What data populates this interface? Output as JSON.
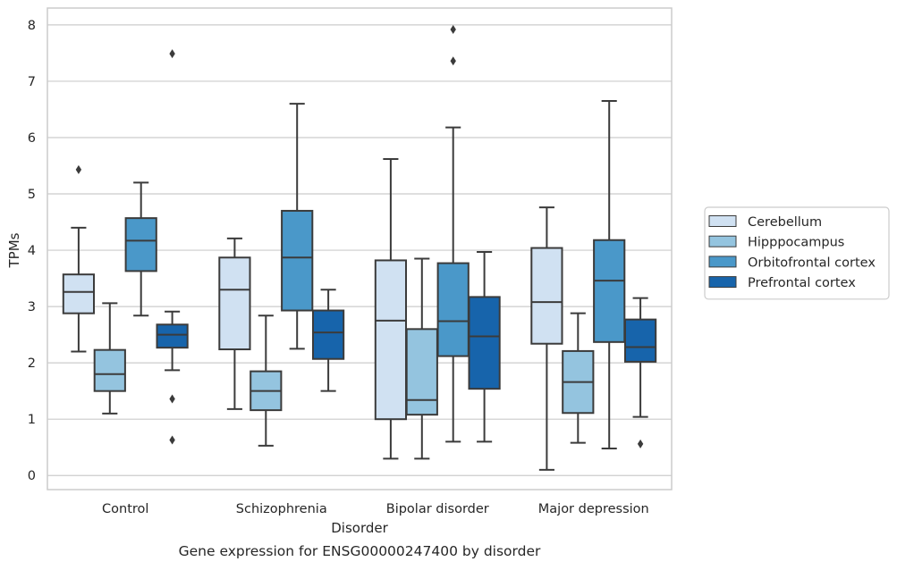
{
  "chart_data": {
    "type": "boxplot",
    "caption": "Gene expression for ENSG00000247400 by disorder",
    "xlabel": "Disorder",
    "ylabel": "TPMs",
    "ylim": [
      -0.25,
      8.3
    ],
    "yticks": [
      0,
      1,
      2,
      3,
      4,
      5,
      6,
      7,
      8
    ],
    "grid": true,
    "legend_position": "right",
    "categories": [
      "Control",
      "Schizophrenia",
      "Bipolar disorder",
      "Major depression"
    ],
    "series": [
      {
        "name": "Cerebellum",
        "color": "#d0e1f2",
        "boxes": [
          {
            "whislo": 2.2,
            "q1": 2.88,
            "med": 3.26,
            "q3": 3.57,
            "whishi": 4.4,
            "fliers": [
              5.43
            ]
          },
          {
            "whislo": 1.18,
            "q1": 2.24,
            "med": 3.3,
            "q3": 3.87,
            "whishi": 4.21,
            "fliers": []
          },
          {
            "whislo": 0.3,
            "q1": 1.0,
            "med": 2.75,
            "q3": 3.82,
            "whishi": 5.62,
            "fliers": []
          },
          {
            "whislo": 0.1,
            "q1": 2.34,
            "med": 3.08,
            "q3": 4.04,
            "whishi": 4.76,
            "fliers": []
          }
        ]
      },
      {
        "name": "Hipppocampus",
        "color": "#94c4df",
        "boxes": [
          {
            "whislo": 1.1,
            "q1": 1.5,
            "med": 1.8,
            "q3": 2.23,
            "whishi": 3.06,
            "fliers": []
          },
          {
            "whislo": 0.53,
            "q1": 1.16,
            "med": 1.5,
            "q3": 1.85,
            "whishi": 2.84,
            "fliers": []
          },
          {
            "whislo": 0.3,
            "q1": 1.08,
            "med": 1.34,
            "q3": 2.6,
            "whishi": 3.85,
            "fliers": []
          },
          {
            "whislo": 0.58,
            "q1": 1.11,
            "med": 1.66,
            "q3": 2.21,
            "whishi": 2.88,
            "fliers": []
          }
        ]
      },
      {
        "name": "Orbitofrontal cortex",
        "color": "#4a98c9",
        "boxes": [
          {
            "whislo": 2.84,
            "q1": 3.63,
            "med": 4.17,
            "q3": 4.57,
            "whishi": 5.2,
            "fliers": []
          },
          {
            "whislo": 2.25,
            "q1": 2.93,
            "med": 3.87,
            "q3": 4.7,
            "whishi": 6.6,
            "fliers": []
          },
          {
            "whislo": 0.6,
            "q1": 2.12,
            "med": 2.74,
            "q3": 3.77,
            "whishi": 6.18,
            "fliers": [
              7.36,
              7.92
            ]
          },
          {
            "whislo": 0.48,
            "q1": 2.37,
            "med": 3.46,
            "q3": 4.18,
            "whishi": 6.65,
            "fliers": []
          }
        ]
      },
      {
        "name": "Prefrontal cortex",
        "color": "#1764ab",
        "boxes": [
          {
            "whislo": 1.87,
            "q1": 2.27,
            "med": 2.5,
            "q3": 2.68,
            "whishi": 2.91,
            "fliers": [
              7.49,
              1.36,
              0.63
            ]
          },
          {
            "whislo": 1.5,
            "q1": 2.07,
            "med": 2.54,
            "q3": 2.93,
            "whishi": 3.3,
            "fliers": []
          },
          {
            "whislo": 0.6,
            "q1": 1.54,
            "med": 2.47,
            "q3": 3.17,
            "whishi": 3.97,
            "fliers": []
          },
          {
            "whislo": 1.04,
            "q1": 2.02,
            "med": 2.28,
            "q3": 2.77,
            "whishi": 3.15,
            "fliers": [
              0.56
            ]
          }
        ]
      }
    ],
    "colors": {
      "grid": "#cccccc",
      "axes_edge": "#cccccc",
      "box_edge": "#3b3b3b",
      "text": "#262626",
      "legend_edge": "#cccccc"
    }
  }
}
